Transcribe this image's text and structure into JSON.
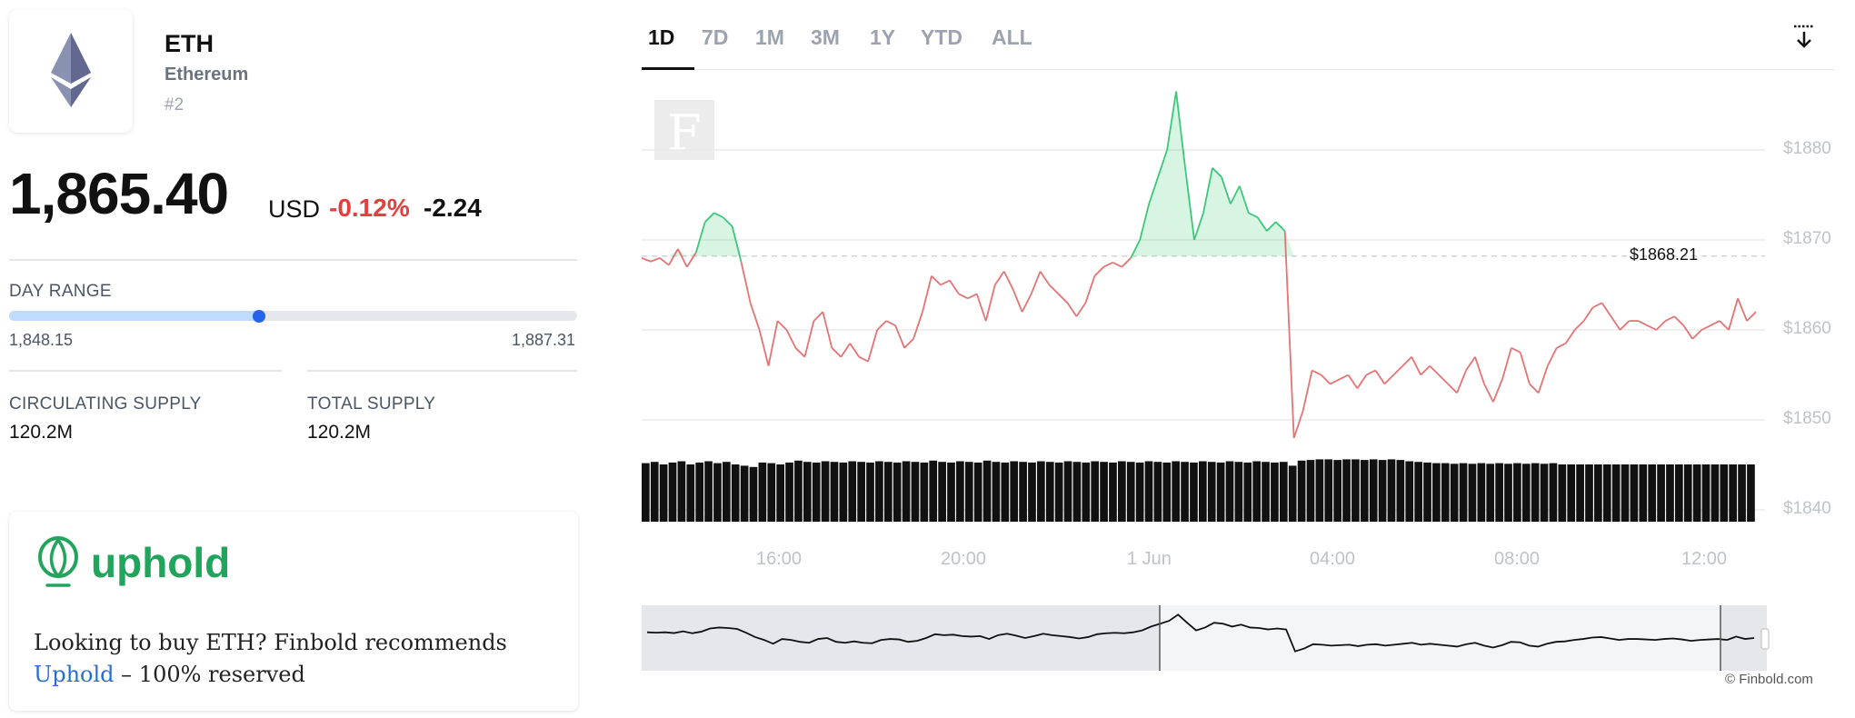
{
  "asset": {
    "symbol": "ETH",
    "name": "Ethereum",
    "rank": "#2",
    "price": "1,865.40",
    "currency": "USD",
    "change_pct": "-0.12%",
    "change_abs": "-2.24"
  },
  "day_range": {
    "label": "DAY RANGE",
    "low": "1,848.15",
    "high": "1,887.31",
    "current_fraction": 0.44
  },
  "supply": {
    "circulating_label": "CIRCULATING SUPPLY",
    "circulating_value": "120.2M",
    "total_label": "TOTAL SUPPLY",
    "total_value": "120.2M"
  },
  "promo": {
    "brand": "uphold",
    "text_before": "Looking to buy ETH? Finbold recommends",
    "link_text": "Uphold",
    "text_after": " – 100% reserved"
  },
  "tabs": [
    "1D",
    "7D",
    "1M",
    "3M",
    "1Y",
    "YTD",
    "ALL"
  ],
  "active_tab": "1D",
  "icons": {
    "download": "download-icon",
    "eth_logo": "ethereum-logo-icon",
    "uphold_logo": "uphold-logo-icon"
  },
  "colors": {
    "up": "#22c55e",
    "down": "#e53e3e",
    "accent": "#2563eb",
    "uphold": "#22a45d"
  },
  "chart_data": {
    "type": "area",
    "reference_label": "$1868.21",
    "reference_value": 1868.21,
    "y_ticks": [
      "$1880",
      "$1870",
      "$1860",
      "$1850",
      "$1840"
    ],
    "x_ticks": [
      "16:00",
      "20:00",
      "1 Jun",
      "04:00",
      "08:00",
      "12:00"
    ],
    "ylim": [
      1840,
      1885
    ],
    "series": [
      {
        "values": [
          1868.0,
          1867.6,
          1868.0,
          1867.2,
          1869.0,
          1867.0,
          1868.6,
          1872.0,
          1873.0,
          1872.5,
          1871.5,
          1867.5,
          1863.0,
          1860.0,
          1856.0,
          1861.0,
          1860.0,
          1858.0,
          1857.0,
          1861.0,
          1862.0,
          1858.0,
          1857.0,
          1858.5,
          1857.0,
          1856.5,
          1860.0,
          1861.0,
          1860.5,
          1858.0,
          1859.0,
          1862.0,
          1866.0,
          1865.0,
          1865.5,
          1864.0,
          1863.5,
          1864.0,
          1861.0,
          1865.0,
          1866.5,
          1864.5,
          1862.0,
          1864.0,
          1866.5,
          1865.0,
          1864.0,
          1863.0,
          1861.5,
          1863.0,
          1866.0,
          1867.0,
          1867.5,
          1867.0,
          1868.0,
          1870.0,
          1874.0,
          1877.0,
          1880.0,
          1886.5,
          1878.0,
          1870.0,
          1873.0,
          1878.0,
          1877.0,
          1874.0,
          1876.0,
          1873.0,
          1872.5,
          1871.0,
          1872.0,
          1871.0,
          1848.0,
          1851.0,
          1855.5,
          1855.0,
          1854.0,
          1854.5,
          1855.0,
          1853.5,
          1855.0,
          1855.5,
          1854.0,
          1855.0,
          1856.0,
          1857.0,
          1855.0,
          1856.0,
          1855.0,
          1854.0,
          1853.0,
          1855.5,
          1857.0,
          1854.0,
          1852.0,
          1854.5,
          1858.0,
          1857.5,
          1854.0,
          1853.0,
          1856.0,
          1858.0,
          1858.5,
          1860.0,
          1861.0,
          1862.5,
          1863.0,
          1861.5,
          1860.0,
          1861.0,
          1861.0,
          1860.5,
          1860.0,
          1861.0,
          1861.5,
          1860.5,
          1859.0,
          1860.0,
          1860.5,
          1861.0,
          1860.0,
          1863.5,
          1861.0,
          1862.0
        ]
      }
    ],
    "volume": [
      0.92,
      0.94,
      0.9,
      0.93,
      0.95,
      0.9,
      0.93,
      0.95,
      0.92,
      0.94,
      0.9,
      0.88,
      0.86,
      0.93,
      0.92,
      0.9,
      0.93,
      0.96,
      0.94,
      0.93,
      0.95,
      0.94,
      0.93,
      0.95,
      0.94,
      0.93,
      0.95,
      0.94,
      0.93,
      0.95,
      0.94,
      0.93,
      0.96,
      0.94,
      0.93,
      0.95,
      0.94,
      0.93,
      0.96,
      0.94,
      0.93,
      0.95,
      0.94,
      0.93,
      0.95,
      0.94,
      0.93,
      0.95,
      0.94,
      0.93,
      0.95,
      0.94,
      0.93,
      0.95,
      0.94,
      0.93,
      0.95,
      0.94,
      0.93,
      0.95,
      0.94,
      0.93,
      0.95,
      0.94,
      0.93,
      0.95,
      0.94,
      0.93,
      0.95,
      0.94,
      0.93,
      0.94,
      0.88,
      0.96,
      0.97,
      0.98,
      0.98,
      0.97,
      0.98,
      0.98,
      0.97,
      0.98,
      0.97,
      0.98,
      0.97,
      0.95,
      0.94,
      0.93,
      0.92,
      0.92,
      0.91,
      0.92,
      0.91,
      0.92,
      0.91,
      0.92,
      0.91,
      0.92,
      0.91,
      0.92,
      0.91,
      0.92,
      0.9,
      0.9,
      0.9,
      0.9,
      0.9,
      0.9,
      0.9,
      0.9,
      0.9,
      0.9,
      0.9,
      0.9,
      0.9,
      0.9,
      0.9,
      0.9,
      0.9,
      0.9,
      0.9,
      0.9,
      0.9,
      0.9
    ]
  },
  "credit": "© Finbold.com"
}
